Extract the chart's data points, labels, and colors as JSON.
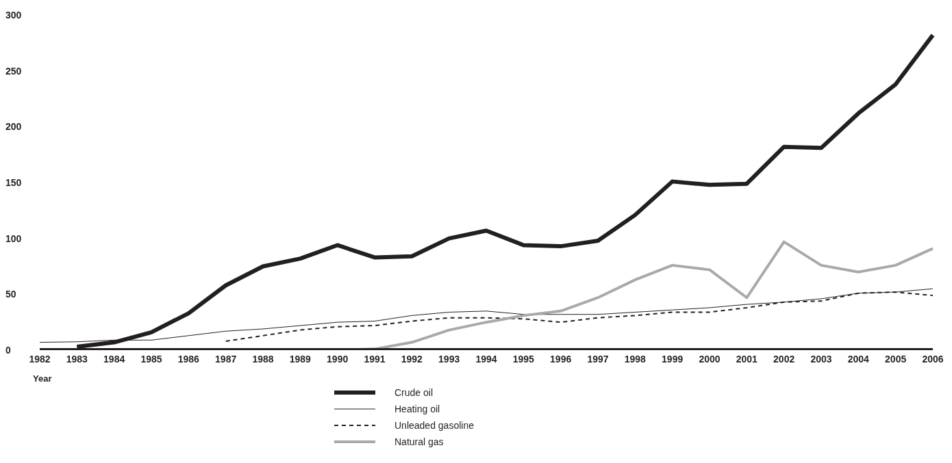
{
  "chart_data": {
    "type": "line",
    "xlabel": "Year",
    "categories": [
      "1982",
      "1983",
      "1984",
      "1985",
      "1986",
      "1987",
      "1988",
      "1989",
      "1990",
      "1991",
      "1992",
      "1993",
      "1994",
      "1995",
      "1996",
      "1997",
      "1998",
      "1999",
      "2000",
      "2001",
      "2002",
      "2003",
      "2004",
      "2005",
      "2006"
    ],
    "series": [
      {
        "name": "Crude oil",
        "color": "#231f20",
        "line_style": "solid",
        "values": [
          null,
          3,
          7,
          16,
          33,
          58,
          75,
          82,
          94,
          83,
          84,
          100,
          107,
          94,
          93,
          98,
          121,
          151,
          148,
          149,
          182,
          181,
          212,
          238,
          282
        ]
      },
      {
        "name": "Heating oil",
        "color": "#231f20",
        "line_style": "solid",
        "values": [
          7,
          7.5,
          9,
          9,
          13,
          17,
          19,
          22,
          25,
          26,
          31,
          34,
          35,
          32,
          32,
          32,
          34,
          36,
          38,
          41,
          43,
          46,
          51,
          52,
          55
        ]
      },
      {
        "name": "Unleaded gasoline",
        "color": "#231f20",
        "line_style": "dashed",
        "values": [
          null,
          null,
          null,
          null,
          null,
          8,
          13,
          18,
          21,
          22,
          26,
          29,
          29,
          28,
          25,
          29,
          31,
          34,
          34,
          38,
          43,
          44,
          51,
          52,
          49
        ]
      },
      {
        "name": "Natural gas",
        "color": "#a7a9ac",
        "line_style": "solid",
        "values": [
          null,
          null,
          null,
          null,
          null,
          null,
          null,
          null,
          0,
          1,
          7,
          18,
          25,
          31,
          35,
          47,
          63,
          76,
          72,
          47,
          97,
          76,
          70,
          76,
          91
        ]
      }
    ],
    "ylim": [
      0,
      300
    ],
    "yticks": [
      0,
      50,
      100,
      150,
      200,
      250,
      300
    ],
    "grid": false,
    "legend": "bottom",
    "marker": "none"
  }
}
